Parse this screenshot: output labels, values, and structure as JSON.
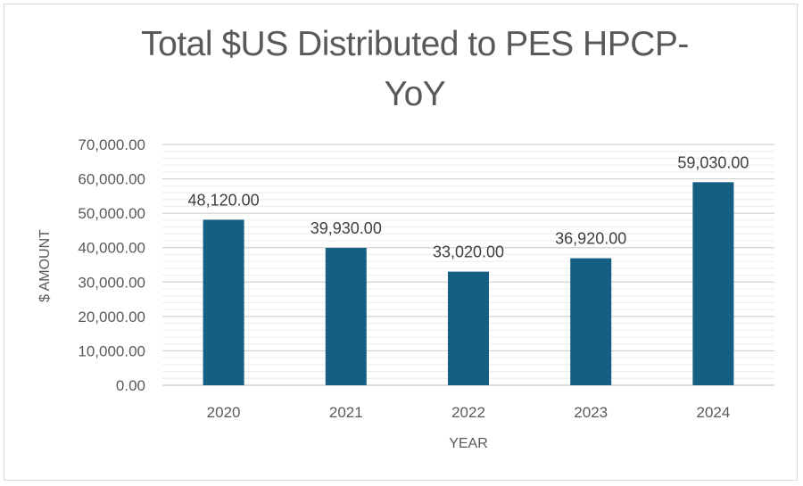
{
  "chart_data": {
    "type": "bar",
    "title_line1": "Total $US Distributed to PES HPCP-",
    "title_line2": "YoY",
    "xlabel": "YEAR",
    "ylabel": "$ AMOUNT",
    "categories": [
      "2020",
      "2021",
      "2022",
      "2023",
      "2024"
    ],
    "values": [
      48120,
      39930,
      33020,
      36920,
      59030
    ],
    "value_labels": [
      "48,120.00",
      "39,930.00",
      "33,020.00",
      "36,920.00",
      "59,030.00"
    ],
    "ylim": [
      0,
      70000
    ],
    "yticks": [
      0,
      10000,
      20000,
      30000,
      40000,
      50000,
      60000,
      70000
    ],
    "ytick_labels": [
      "0.00",
      "10,000.00",
      "20,000.00",
      "30,000.00",
      "40,000.00",
      "50,000.00",
      "60,000.00",
      "70,000.00"
    ],
    "grid": true,
    "bar_color": "#145F82",
    "grid_color": "#d9d9d9",
    "text_color": "#595959"
  }
}
